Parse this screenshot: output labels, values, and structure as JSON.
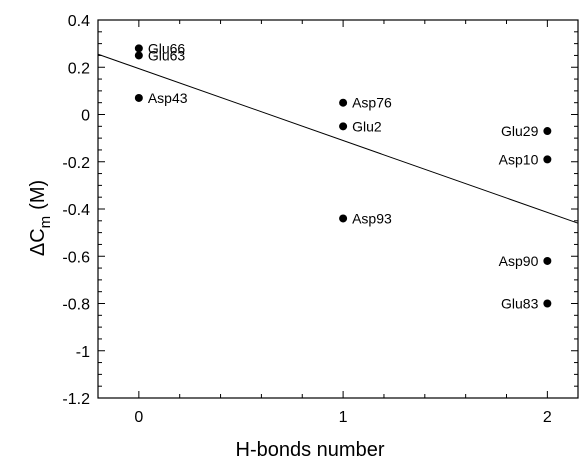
{
  "chart_data": {
    "type": "scatter",
    "title": "",
    "xlabel": "H-bonds number",
    "ylabel_main": "ΔC",
    "ylabel_sub": "m",
    "ylabel_unit": "(M)",
    "xlim": [
      -0.2,
      2.15
    ],
    "ylim": [
      -1.2,
      0.4
    ],
    "x_ticks": [
      0,
      1,
      2
    ],
    "x_tick_labels": [
      "0",
      "1",
      "2"
    ],
    "y_ticks": [
      0.4,
      0.2,
      0,
      -0.2,
      -0.4,
      -0.6,
      -0.8,
      -1,
      -1.2
    ],
    "y_tick_labels": [
      "0.4",
      "0.2",
      "0",
      "-0.2",
      "-0.4",
      "-0.6",
      "-0.8",
      "-1",
      "-1.2"
    ],
    "grid": false,
    "points": [
      {
        "label": "Glu66",
        "x": 0,
        "y": 0.28,
        "label_side": "right"
      },
      {
        "label": "Glu63",
        "x": 0,
        "y": 0.25,
        "label_side": "right"
      },
      {
        "label": "Asp43",
        "x": 0,
        "y": 0.07,
        "label_side": "right"
      },
      {
        "label": "Asp76",
        "x": 1,
        "y": 0.05,
        "label_side": "right"
      },
      {
        "label": "Glu2",
        "x": 1,
        "y": -0.05,
        "label_side": "right"
      },
      {
        "label": "Asp93",
        "x": 1,
        "y": -0.44,
        "label_side": "right"
      },
      {
        "label": "Glu29",
        "x": 2,
        "y": -0.07,
        "label_side": "left"
      },
      {
        "label": "Asp10",
        "x": 2,
        "y": -0.19,
        "label_side": "left"
      },
      {
        "label": "Asp90",
        "x": 2,
        "y": -0.62,
        "label_side": "left"
      },
      {
        "label": "Glu83",
        "x": 2,
        "y": -0.8,
        "label_side": "left"
      }
    ],
    "fit_line": {
      "x": [
        -0.2,
        2.15
      ],
      "y": [
        0.255,
        -0.46
      ]
    }
  }
}
